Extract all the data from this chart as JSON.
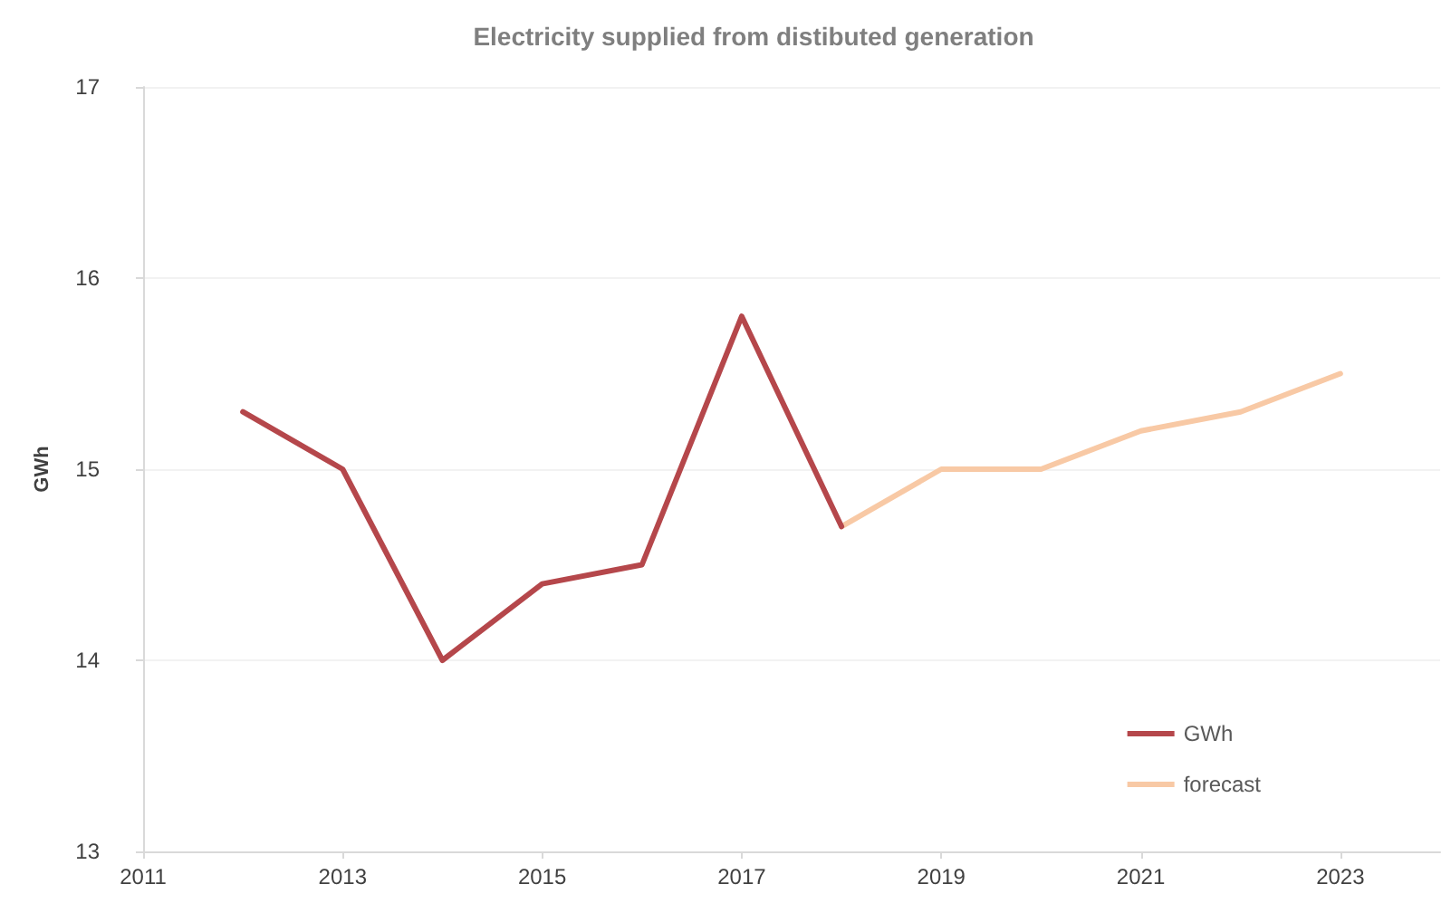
{
  "chart_data": {
    "type": "line",
    "title": "Electricity supplied from distibuted generation",
    "ylabel": "GWh",
    "series": [
      {
        "name": "GWh",
        "color": "#b5474b",
        "x": [
          2012,
          2013,
          2014,
          2015,
          2016,
          2017,
          2018
        ],
        "values": [
          15.3,
          15.0,
          14.0,
          14.4,
          14.5,
          15.8,
          14.7
        ]
      },
      {
        "name": "forecast",
        "color": "#f8c9a5",
        "x": [
          2018,
          2019,
          2020,
          2021,
          2022,
          2023
        ],
        "values": [
          14.7,
          15.0,
          15.0,
          15.2,
          15.3,
          15.5
        ]
      }
    ],
    "xlim": [
      2011,
      2024
    ],
    "xticks": [
      2011,
      2013,
      2015,
      2017,
      2019,
      2021,
      2023
    ],
    "ylim": [
      13,
      17
    ],
    "yticks": [
      13,
      14,
      15,
      16,
      17
    ],
    "grid": "y",
    "legend": "bottom right",
    "marker": "none",
    "line_style": "solid"
  }
}
